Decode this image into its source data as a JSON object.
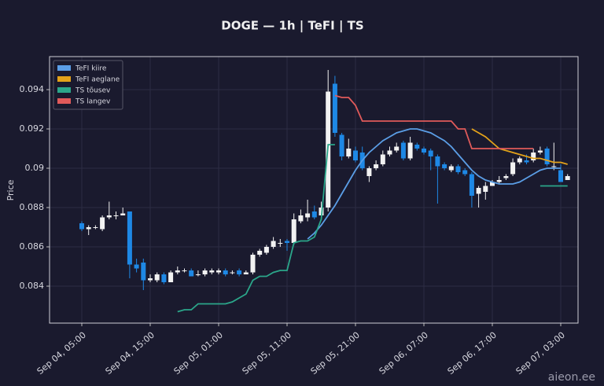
{
  "chart_data": {
    "type": "candlestick",
    "title": "DOGE — 1h  |  TeFI  |  TS",
    "y_label": "Price",
    "watermark": "aieon.ee",
    "categories": [
      "Sep 04, 05:00",
      null,
      null,
      null,
      null,
      null,
      null,
      null,
      null,
      null,
      "Sep 04, 15:00",
      null,
      null,
      null,
      null,
      null,
      null,
      null,
      null,
      null,
      "Sep 05, 01:00",
      null,
      null,
      null,
      null,
      null,
      null,
      null,
      null,
      null,
      "Sep 05, 11:00",
      null,
      null,
      null,
      null,
      null,
      null,
      null,
      null,
      null,
      "Sep 05, 21:00",
      null,
      null,
      null,
      null,
      null,
      null,
      null,
      null,
      null,
      "Sep 06, 07:00",
      null,
      null,
      null,
      null,
      null,
      null,
      null,
      null,
      null,
      "Sep 06, 17:00",
      null,
      null,
      null,
      null,
      null,
      null,
      null,
      null,
      null,
      "Sep 07, 03:00",
      null
    ],
    "open": [
      0.0872,
      0.0869,
      0.087,
      0.0869,
      0.0875,
      0.0876,
      0.0876,
      0.0878,
      0.0851,
      0.0852,
      0.0843,
      0.0843,
      0.0846,
      0.0842,
      0.0847,
      0.0848,
      0.0848,
      0.0846,
      0.0846,
      0.0847,
      0.0847,
      0.0848,
      0.0847,
      0.0848,
      0.0846,
      0.0847,
      0.0856,
      0.0857,
      0.086,
      0.0862,
      0.0863,
      0.0862,
      0.0873,
      0.0875,
      0.0878,
      0.0876,
      0.088,
      0.0943,
      0.0917,
      0.0906,
      0.0909,
      0.0908,
      0.0896,
      0.09,
      0.0902,
      0.0907,
      0.0909,
      0.0913,
      0.0905,
      0.0912,
      0.091,
      0.0909,
      0.0906,
      0.0902,
      0.0899,
      0.0901,
      0.0899,
      0.0897,
      0.0887,
      0.0888,
      0.0891,
      0.0893,
      0.0895,
      0.0897,
      0.0903,
      0.0904,
      0.0904,
      0.0908,
      0.091,
      0.0901,
      0.0899,
      0.0894
    ],
    "high": [
      0.0873,
      0.0871,
      0.0871,
      0.0876,
      0.0883,
      0.0878,
      0.088,
      0.0878,
      0.0854,
      0.0854,
      0.0846,
      0.0847,
      0.0847,
      0.0848,
      0.085,
      0.0849,
      0.0849,
      0.0848,
      0.0849,
      0.0849,
      0.0849,
      0.0849,
      0.0848,
      0.0849,
      0.0848,
      0.0857,
      0.0859,
      0.0861,
      0.0865,
      0.0864,
      0.0864,
      0.0877,
      0.0879,
      0.0884,
      0.0881,
      0.0883,
      0.095,
      0.0947,
      0.0918,
      0.0915,
      0.0911,
      0.0911,
      0.0901,
      0.0904,
      0.0909,
      0.0911,
      0.0913,
      0.0914,
      0.0916,
      0.0913,
      0.0911,
      0.091,
      0.0907,
      0.0903,
      0.0902,
      0.0902,
      0.09,
      0.0898,
      0.0891,
      0.0893,
      0.0894,
      0.0896,
      0.0897,
      0.0905,
      0.0906,
      0.0907,
      0.091,
      0.0911,
      0.0911,
      0.0913,
      0.0902,
      0.0897
    ],
    "low": [
      0.0868,
      0.0866,
      0.0869,
      0.0868,
      0.0874,
      0.0874,
      0.0876,
      0.0844,
      0.0847,
      0.0838,
      0.0842,
      0.0842,
      0.0841,
      0.0842,
      0.0846,
      0.0847,
      0.0845,
      0.0845,
      0.0845,
      0.0846,
      0.0846,
      0.0845,
      0.0846,
      0.0845,
      0.0846,
      0.0846,
      0.0855,
      0.0856,
      0.0859,
      0.086,
      0.0858,
      0.0861,
      0.0872,
      0.0873,
      0.0874,
      0.0875,
      0.0878,
      0.0916,
      0.0904,
      0.0905,
      0.0903,
      0.0899,
      0.0893,
      0.0899,
      0.0901,
      0.0906,
      0.0908,
      0.0904,
      0.0904,
      0.0909,
      0.0907,
      0.0899,
      0.0882,
      0.0899,
      0.0898,
      0.0897,
      0.0896,
      0.088,
      0.088,
      0.0884,
      0.0891,
      0.0892,
      0.0894,
      0.0896,
      0.0902,
      0.0902,
      0.0903,
      0.0907,
      0.0901,
      0.0899,
      0.0893,
      0.0894
    ],
    "close": [
      0.0869,
      0.087,
      0.087,
      0.0875,
      0.0876,
      0.0876,
      0.0877,
      0.0851,
      0.0849,
      0.0843,
      0.0844,
      0.0846,
      0.0842,
      0.0847,
      0.0848,
      0.0848,
      0.0845,
      0.0846,
      0.0848,
      0.0848,
      0.0848,
      0.0846,
      0.0847,
      0.0846,
      0.0847,
      0.0856,
      0.0858,
      0.086,
      0.0863,
      0.0862,
      0.0862,
      0.0874,
      0.0876,
      0.0877,
      0.0875,
      0.088,
      0.0939,
      0.0918,
      0.0906,
      0.091,
      0.0904,
      0.09,
      0.09,
      0.0902,
      0.0907,
      0.0909,
      0.0911,
      0.0905,
      0.0913,
      0.091,
      0.0908,
      0.0906,
      0.0901,
      0.09,
      0.0901,
      0.0898,
      0.0897,
      0.0886,
      0.089,
      0.0891,
      0.0893,
      0.0894,
      0.0896,
      0.0903,
      0.0905,
      0.0903,
      0.0908,
      0.0909,
      0.0902,
      0.0901,
      0.0893,
      0.0896
    ],
    "up_color": "#f2f2f2",
    "down_color": "#1e88e5",
    "series": [
      {
        "name": "TeFI kiire",
        "color": "#5b9ee6",
        "values": [
          null,
          null,
          null,
          null,
          null,
          null,
          null,
          null,
          null,
          null,
          null,
          null,
          null,
          null,
          null,
          null,
          null,
          null,
          null,
          null,
          null,
          null,
          null,
          null,
          null,
          null,
          null,
          null,
          null,
          null,
          null,
          null,
          null,
          0.0864,
          0.0867,
          0.0871,
          0.0876,
          0.0881,
          0.0887,
          0.0893,
          0.0899,
          0.0904,
          0.0908,
          0.0911,
          0.0914,
          0.0916,
          0.0918,
          0.0919,
          0.092,
          0.092,
          0.0919,
          0.0918,
          0.0916,
          0.0914,
          0.0911,
          0.0907,
          0.0903,
          0.0899,
          0.0896,
          0.0894,
          0.0893,
          0.0892,
          0.0892,
          0.0892,
          0.0893,
          0.0895,
          0.0897,
          0.0899,
          0.09,
          0.09,
          0.09,
          null
        ]
      },
      {
        "name": "TeFI aeglane",
        "color": "#e3a21a",
        "values": [
          null,
          null,
          null,
          null,
          null,
          null,
          null,
          null,
          null,
          null,
          null,
          null,
          null,
          null,
          null,
          null,
          null,
          null,
          null,
          null,
          null,
          null,
          null,
          null,
          null,
          null,
          null,
          null,
          null,
          null,
          null,
          null,
          null,
          null,
          null,
          null,
          null,
          null,
          null,
          null,
          null,
          null,
          null,
          null,
          null,
          null,
          null,
          null,
          null,
          null,
          null,
          null,
          null,
          null,
          null,
          null,
          null,
          0.092,
          0.0918,
          0.0916,
          0.0913,
          0.091,
          0.0909,
          0.0908,
          0.0907,
          0.0906,
          0.0905,
          0.0905,
          0.0904,
          0.0903,
          0.0903,
          0.0902
        ]
      },
      {
        "name": "TS tõusev",
        "color": "#2ba68a",
        "values": [
          null,
          null,
          null,
          null,
          null,
          null,
          null,
          null,
          null,
          null,
          null,
          null,
          null,
          null,
          0.0827,
          0.0828,
          0.0828,
          0.0831,
          0.0831,
          0.0831,
          0.0831,
          0.0831,
          0.0832,
          0.0834,
          0.0836,
          0.0843,
          0.0845,
          0.0845,
          0.0847,
          0.0848,
          0.0848,
          0.0862,
          0.0863,
          0.0863,
          0.0865,
          0.0874,
          0.0912,
          0.0912,
          null,
          null,
          null,
          null,
          null,
          null,
          null,
          null,
          null,
          null,
          null,
          null,
          null,
          null,
          null,
          null,
          null,
          null,
          null,
          null,
          null,
          null,
          null,
          null,
          null,
          null,
          null,
          null,
          null,
          0.0891,
          0.0891,
          0.0891,
          0.0891,
          0.0891
        ]
      },
      {
        "name": "TS langev",
        "color": "#e05a5a",
        "values": [
          null,
          null,
          null,
          null,
          null,
          null,
          null,
          null,
          null,
          null,
          null,
          null,
          null,
          null,
          null,
          null,
          null,
          null,
          null,
          null,
          null,
          null,
          null,
          null,
          null,
          null,
          null,
          null,
          null,
          null,
          null,
          null,
          null,
          null,
          null,
          null,
          null,
          0.0937,
          0.0936,
          0.0936,
          0.0932,
          0.0924,
          0.0924,
          0.0924,
          0.0924,
          0.0924,
          0.0924,
          0.0924,
          0.0924,
          0.0924,
          0.0924,
          0.0924,
          0.0924,
          0.0924,
          0.0924,
          0.092,
          0.092,
          0.091,
          0.091,
          0.091,
          0.091,
          0.091,
          0.091,
          0.091,
          0.091,
          0.091,
          0.091,
          null,
          null,
          null,
          null,
          null
        ]
      }
    ],
    "ylim": [
      0.08212,
      0.09568
    ],
    "yticks": [
      0.084,
      0.086,
      0.088,
      0.09,
      0.092,
      0.094
    ],
    "grid": true,
    "legend": "upper left"
  }
}
